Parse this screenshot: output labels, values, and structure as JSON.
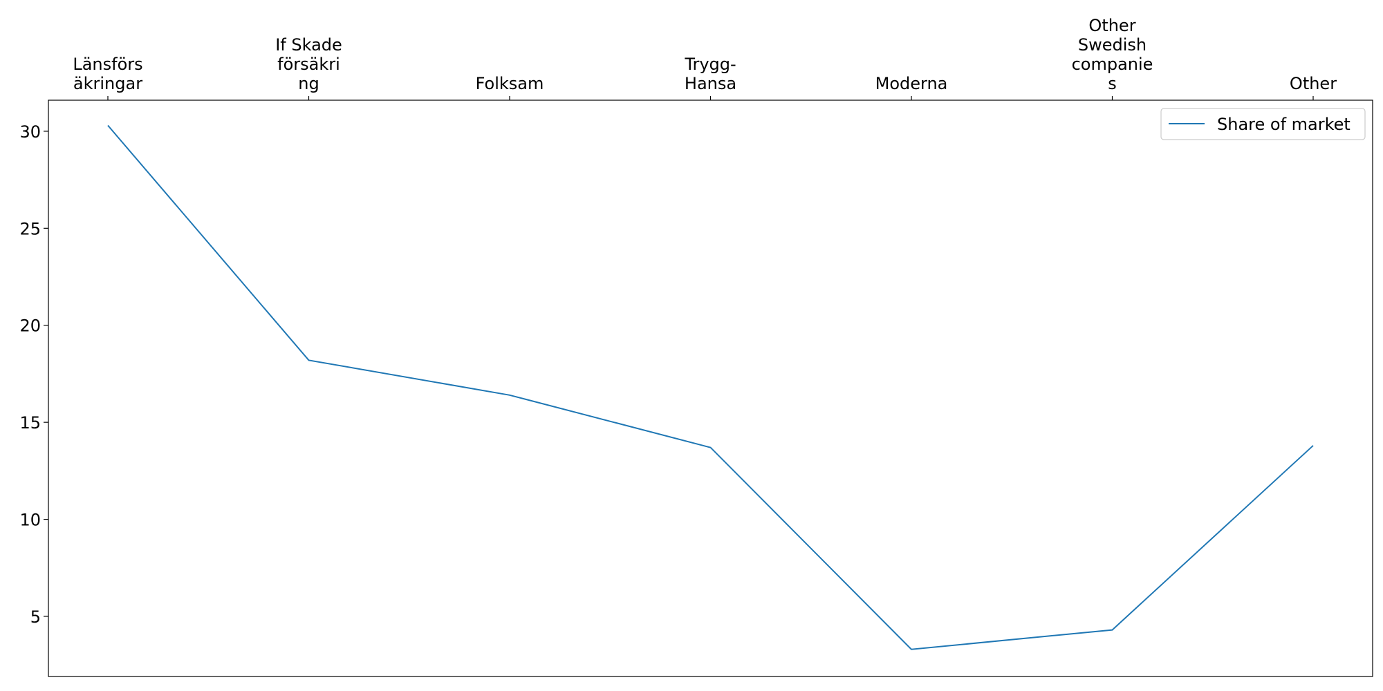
{
  "chart_data": {
    "type": "line",
    "categories": [
      [
        "Länsförs",
        "äkringar"
      ],
      [
        "If Skade",
        "försäkri",
        "ng"
      ],
      [
        "Folksam"
      ],
      [
        "Trygg-",
        "Hansa"
      ],
      [
        "Moderna"
      ],
      [
        "Other",
        "Swedish",
        "companie",
        "s"
      ],
      [
        "Other"
      ]
    ],
    "series": [
      {
        "name": "Share of market",
        "color": "#1f77b4",
        "values": [
          30.3,
          18.2,
          16.4,
          13.7,
          3.3,
          4.3,
          13.8
        ]
      }
    ],
    "yticks": [
      "5",
      "10",
      "15",
      "20",
      "25",
      "30"
    ],
    "ylim": [
      1.9,
      31.6
    ],
    "xaxis_position": "top",
    "legend": {
      "placement": "top-right"
    },
    "grid": false
  }
}
